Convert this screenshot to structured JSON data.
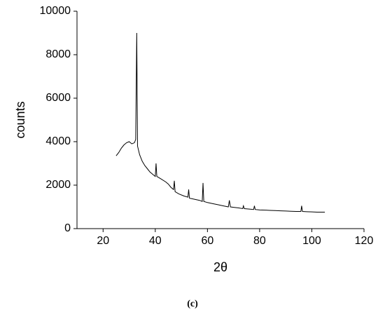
{
  "chart_data": {
    "type": "line",
    "x_label": "2θ",
    "y_label": "counts",
    "caption": "(c)",
    "x": [
      25,
      26,
      27,
      28,
      29,
      30,
      31,
      32,
      32.5,
      32.9,
      33.2,
      34,
      35,
      36,
      37,
      38,
      39,
      40,
      40.3,
      40.6,
      42,
      44,
      45,
      46,
      47,
      47.3,
      47.6,
      49,
      51,
      52.5,
      52.8,
      53.1,
      55,
      57,
      58,
      58.3,
      58.6,
      60,
      62,
      64,
      66,
      68,
      68.4,
      68.8,
      70,
      72,
      73.5,
      73.8,
      74.1,
      76,
      77.7,
      78,
      78.3,
      80,
      82,
      84,
      86,
      88,
      90,
      92,
      94,
      95.8,
      96.1,
      96.4,
      98,
      100,
      102,
      105
    ],
    "values": [
      3350,
      3500,
      3700,
      3850,
      3950,
      4000,
      3900,
      3950,
      4100,
      9000,
      3800,
      3400,
      3100,
      2900,
      2750,
      2600,
      2500,
      2400,
      3000,
      2400,
      2300,
      2150,
      2050,
      1900,
      1800,
      2200,
      1700,
      1600,
      1500,
      1450,
      1800,
      1400,
      1350,
      1300,
      1250,
      2100,
      1250,
      1200,
      1150,
      1100,
      1050,
      1000,
      1300,
      1000,
      980,
      950,
      920,
      1050,
      920,
      900,
      880,
      1050,
      880,
      860,
      850,
      840,
      830,
      820,
      810,
      800,
      790,
      790,
      1050,
      790,
      780,
      770,
      760,
      760
    ],
    "color": "#000000",
    "xlim": [
      10,
      120
    ],
    "xticks": [
      20,
      40,
      60,
      80,
      100,
      120
    ],
    "ylim": [
      0,
      10000
    ],
    "yticks": [
      0,
      2000,
      4000,
      6000,
      8000,
      10000
    ],
    "grid": false
  }
}
